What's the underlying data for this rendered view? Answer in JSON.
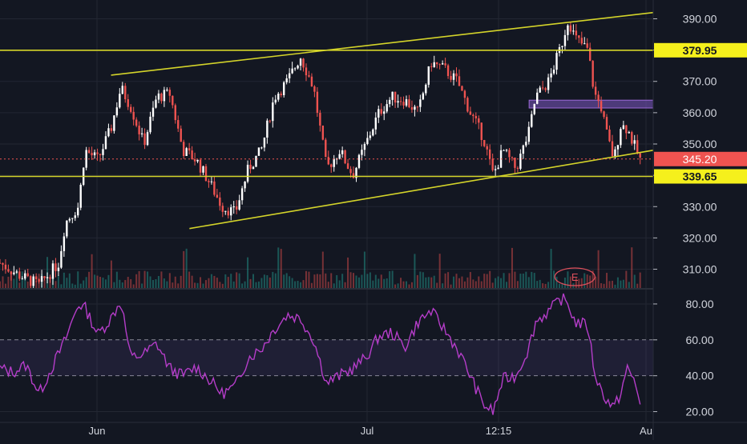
{
  "chart_data": [
    {
      "type": "candlestick",
      "title": "",
      "x_tick_labels": [
        "Jun",
        "Jul",
        "12:15",
        "Au"
      ],
      "y_tick_labels": [
        "390.00",
        "380.00",
        "370.00",
        "360.00",
        "350.00",
        "340.00",
        "330.00",
        "320.00",
        "310.00"
      ],
      "y_ticks": [
        390,
        380,
        370,
        360,
        350,
        340,
        330,
        320,
        310
      ],
      "ylim": [
        304,
        396
      ],
      "grid": true,
      "price_tags": [
        {
          "label": "379.95",
          "value": 379.95,
          "style": "yellow"
        },
        {
          "label": "345.20",
          "value": 345.2,
          "style": "red"
        },
        {
          "label": "339.65",
          "value": 339.65,
          "style": "yellow"
        }
      ],
      "horizontal_levels": [
        379.95,
        339.65
      ],
      "current_price_line": 345.2,
      "trendlines": [
        {
          "name": "upper channel",
          "points": [
            [
              0.17,
              372
            ],
            [
              1.0,
              392
            ]
          ]
        },
        {
          "name": "lower channel",
          "points": [
            [
              0.29,
              323
            ],
            [
              1.0,
              348
            ]
          ]
        }
      ],
      "zone": {
        "from": 361.5,
        "to": 364,
        "x_range": [
          0.81,
          1.0
        ]
      },
      "close_path": [
        [
          0.0,
          312
        ],
        [
          0.03,
          308
        ],
        [
          0.06,
          305
        ],
        [
          0.09,
          312
        ],
        [
          0.1,
          325
        ],
        [
          0.12,
          330
        ],
        [
          0.13,
          348
        ],
        [
          0.15,
          345
        ],
        [
          0.17,
          355
        ],
        [
          0.185,
          368
        ],
        [
          0.2,
          362
        ],
        [
          0.22,
          350
        ],
        [
          0.24,
          365
        ],
        [
          0.26,
          366
        ],
        [
          0.28,
          348
        ],
        [
          0.3,
          345
        ],
        [
          0.32,
          338
        ],
        [
          0.34,
          330
        ],
        [
          0.36,
          328
        ],
        [
          0.38,
          342
        ],
        [
          0.4,
          348
        ],
        [
          0.42,
          365
        ],
        [
          0.44,
          370
        ],
        [
          0.46,
          378
        ],
        [
          0.48,
          368
        ],
        [
          0.5,
          342
        ],
        [
          0.52,
          348
        ],
        [
          0.54,
          340
        ],
        [
          0.56,
          350
        ],
        [
          0.58,
          360
        ],
        [
          0.6,
          365
        ],
        [
          0.62,
          364
        ],
        [
          0.64,
          360
        ],
        [
          0.66,
          376
        ],
        [
          0.68,
          374
        ],
        [
          0.7,
          370
        ],
        [
          0.72,
          360
        ],
        [
          0.74,
          352
        ],
        [
          0.755,
          340
        ],
        [
          0.77,
          348
        ],
        [
          0.79,
          342
        ],
        [
          0.81,
          354
        ],
        [
          0.82,
          365
        ],
        [
          0.84,
          370
        ],
        [
          0.86,
          382
        ],
        [
          0.87,
          390
        ],
        [
          0.88,
          384
        ],
        [
          0.9,
          380
        ],
        [
          0.91,
          366
        ],
        [
          0.92,
          362
        ],
        [
          0.93,
          352
        ],
        [
          0.94,
          345
        ],
        [
          0.95,
          356
        ],
        [
          0.96,
          355
        ],
        [
          0.97,
          350
        ],
        [
          0.98,
          345
        ]
      ],
      "volume_levels": [
        0.2,
        0.5,
        0.3,
        0.9,
        0.4
      ],
      "earnings_marker": {
        "label": "E",
        "x": 0.88
      }
    },
    {
      "type": "line",
      "name": "RSI",
      "y_tick_labels": [
        "80.00",
        "60.00",
        "40.00",
        "20.00"
      ],
      "y_ticks": [
        80,
        60,
        40,
        20
      ],
      "ylim": [
        14,
        88
      ],
      "band": [
        40,
        60
      ],
      "values": [
        [
          0.0,
          44
        ],
        [
          0.02,
          42
        ],
        [
          0.04,
          46
        ],
        [
          0.06,
          30
        ],
        [
          0.08,
          45
        ],
        [
          0.1,
          60
        ],
        [
          0.12,
          80
        ],
        [
          0.13,
          78
        ],
        [
          0.15,
          63
        ],
        [
          0.17,
          72
        ],
        [
          0.185,
          82
        ],
        [
          0.2,
          50
        ],
        [
          0.22,
          52
        ],
        [
          0.24,
          58
        ],
        [
          0.26,
          44
        ],
        [
          0.28,
          40
        ],
        [
          0.3,
          45
        ],
        [
          0.32,
          38
        ],
        [
          0.34,
          30
        ],
        [
          0.36,
          34
        ],
        [
          0.38,
          50
        ],
        [
          0.4,
          55
        ],
        [
          0.42,
          66
        ],
        [
          0.44,
          74
        ],
        [
          0.46,
          72
        ],
        [
          0.48,
          60
        ],
        [
          0.5,
          36
        ],
        [
          0.52,
          40
        ],
        [
          0.54,
          44
        ],
        [
          0.56,
          50
        ],
        [
          0.58,
          62
        ],
        [
          0.6,
          64
        ],
        [
          0.62,
          56
        ],
        [
          0.64,
          70
        ],
        [
          0.66,
          76
        ],
        [
          0.68,
          66
        ],
        [
          0.7,
          55
        ],
        [
          0.72,
          40
        ],
        [
          0.74,
          24
        ],
        [
          0.755,
          20
        ],
        [
          0.77,
          38
        ],
        [
          0.79,
          40
        ],
        [
          0.81,
          56
        ],
        [
          0.82,
          70
        ],
        [
          0.84,
          76
        ],
        [
          0.86,
          83
        ],
        [
          0.87,
          80
        ],
        [
          0.88,
          70
        ],
        [
          0.9,
          68
        ],
        [
          0.91,
          42
        ],
        [
          0.92,
          32
        ],
        [
          0.93,
          26
        ],
        [
          0.94,
          22
        ],
        [
          0.95,
          30
        ],
        [
          0.96,
          44
        ],
        [
          0.97,
          38
        ],
        [
          0.98,
          26
        ]
      ]
    }
  ],
  "ui": {
    "earnings_label": "E"
  }
}
